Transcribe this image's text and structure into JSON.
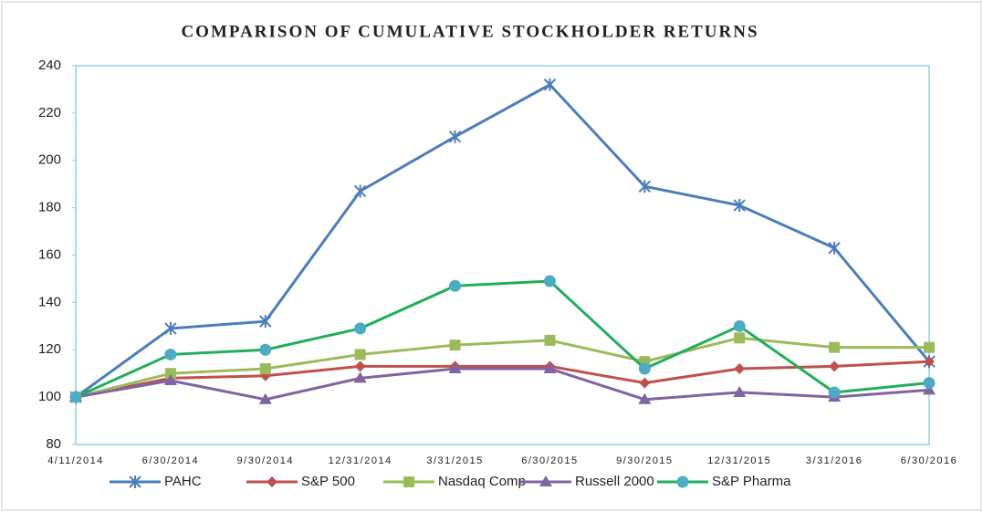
{
  "chart_data": {
    "type": "line",
    "title": "COMPARISON OF CUMULATIVE STOCKHOLDER RETURNS",
    "categories": [
      "4/11/2014",
      "6/30/2014",
      "9/30/2014",
      "12/31/2014",
      "3/31/2015",
      "6/30/2015",
      "9/30/2015",
      "12/31/2015",
      "3/31/2016",
      "6/30/2016"
    ],
    "series": [
      {
        "name": "PAHC",
        "color": "#4a7ebb",
        "marker": "x",
        "marker_color": "#4a7ebb",
        "values": [
          100,
          129,
          132,
          187,
          210,
          232,
          189,
          181,
          163,
          115
        ]
      },
      {
        "name": "S&P 500",
        "color": "#c0504d",
        "marker": "diamond",
        "marker_color": "#c0504d",
        "values": [
          100,
          108,
          109,
          113,
          113,
          113,
          106,
          112,
          113,
          115
        ]
      },
      {
        "name": "Nasdaq Comp",
        "color": "#9bbb59",
        "marker": "square",
        "marker_color": "#9bbb59",
        "values": [
          100,
          110,
          112,
          118,
          122,
          124,
          115,
          125,
          121,
          121
        ]
      },
      {
        "name": "Russell 2000",
        "color": "#8064a2",
        "marker": "triangle",
        "marker_color": "#8064a2",
        "values": [
          100,
          107,
          99,
          108,
          112,
          112,
          99,
          102,
          100,
          103
        ]
      },
      {
        "name": "S&P Pharma",
        "color": "#1fae5a",
        "marker": "circle",
        "marker_color": "#4bacc6",
        "values": [
          100,
          118,
          120,
          129,
          147,
          149,
          112,
          130,
          102,
          106
        ]
      }
    ],
    "ylim": [
      80,
      240
    ],
    "yticks": [
      80,
      100,
      120,
      140,
      160,
      180,
      200,
      220,
      240
    ],
    "grid": false,
    "legend": "bottom"
  }
}
